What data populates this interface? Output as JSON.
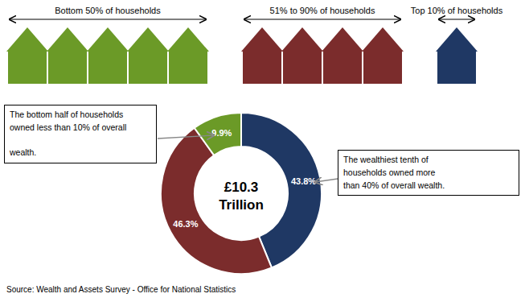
{
  "chart_data": {
    "type": "pie",
    "values": [
      43.8,
      46.3,
      9.9
    ],
    "value_labels": [
      "43.8%",
      "46.3%",
      "9.9%"
    ],
    "colors": [
      "#1f3864",
      "#7b2c2c",
      "#6b9a27"
    ],
    "data_labels": true,
    "center_text": [
      "£10.3",
      "Trillion"
    ],
    "header_groups": [
      {
        "label": "Bottom 50% of households",
        "count": 5,
        "color": "#6b9a27"
      },
      {
        "label": "51% to 90% of households",
        "count": 4,
        "color": "#7b2c2c"
      },
      {
        "label": "Top 10% of households",
        "count": 1,
        "color": "#1f3864"
      }
    ],
    "annotations": [
      "The bottom half of households\nowned less than 10% of overall\n\nwealth.",
      "The wealthiest tenth of\nhouseholds owned more\nthan 40% of overall wealth."
    ],
    "source": "Source: Wealth and Assets Survey - Office for National Statistics"
  }
}
